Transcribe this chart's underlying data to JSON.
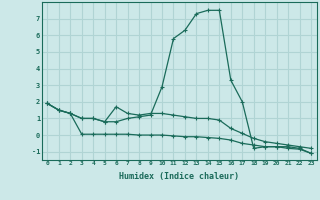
{
  "line1_x": [
    0,
    1,
    2,
    3,
    4,
    5,
    6,
    7,
    8,
    9,
    10,
    11,
    12,
    13,
    14,
    15,
    16,
    17,
    18,
    19,
    20,
    21,
    22,
    23
  ],
  "line1_y": [
    1.9,
    1.5,
    1.3,
    1.0,
    1.0,
    0.8,
    0.8,
    1.0,
    1.1,
    1.2,
    2.9,
    5.8,
    6.3,
    7.3,
    7.5,
    7.5,
    3.3,
    2.0,
    -0.8,
    -0.7,
    -0.7,
    -0.7,
    -0.8,
    -1.1
  ],
  "line2_x": [
    0,
    1,
    2,
    3,
    4,
    5,
    6,
    7,
    8,
    9,
    10,
    11,
    12,
    13,
    14,
    15,
    16,
    17,
    18,
    19,
    20,
    21,
    22,
    23
  ],
  "line2_y": [
    1.9,
    1.5,
    1.3,
    1.0,
    1.0,
    0.8,
    1.7,
    1.3,
    1.2,
    1.3,
    1.3,
    1.2,
    1.1,
    1.0,
    1.0,
    0.9,
    0.4,
    0.1,
    -0.2,
    -0.4,
    -0.5,
    -0.6,
    -0.7,
    -0.8
  ],
  "line3_x": [
    0,
    1,
    2,
    3,
    4,
    5,
    6,
    7,
    8,
    9,
    10,
    11,
    12,
    13,
    14,
    15,
    16,
    17,
    18,
    19,
    20,
    21,
    22,
    23
  ],
  "line3_y": [
    1.9,
    1.5,
    1.3,
    0.05,
    0.05,
    0.05,
    0.05,
    0.05,
    0.0,
    0.0,
    0.0,
    -0.05,
    -0.1,
    -0.1,
    -0.15,
    -0.2,
    -0.3,
    -0.5,
    -0.6,
    -0.7,
    -0.7,
    -0.8,
    -0.85,
    -1.1
  ],
  "line_color": "#1a6b5a",
  "bg_color": "#cce8e8",
  "grid_color": "#b0d4d4",
  "xlabel": "Humidex (Indice chaleur)",
  "ylim": [
    -1.5,
    8.0
  ],
  "xlim": [
    -0.5,
    23.5
  ],
  "yticks": [
    -1,
    0,
    1,
    2,
    3,
    4,
    5,
    6,
    7
  ],
  "xticks": [
    0,
    1,
    2,
    3,
    4,
    5,
    6,
    7,
    8,
    9,
    10,
    11,
    12,
    13,
    14,
    15,
    16,
    17,
    18,
    19,
    20,
    21,
    22,
    23
  ]
}
